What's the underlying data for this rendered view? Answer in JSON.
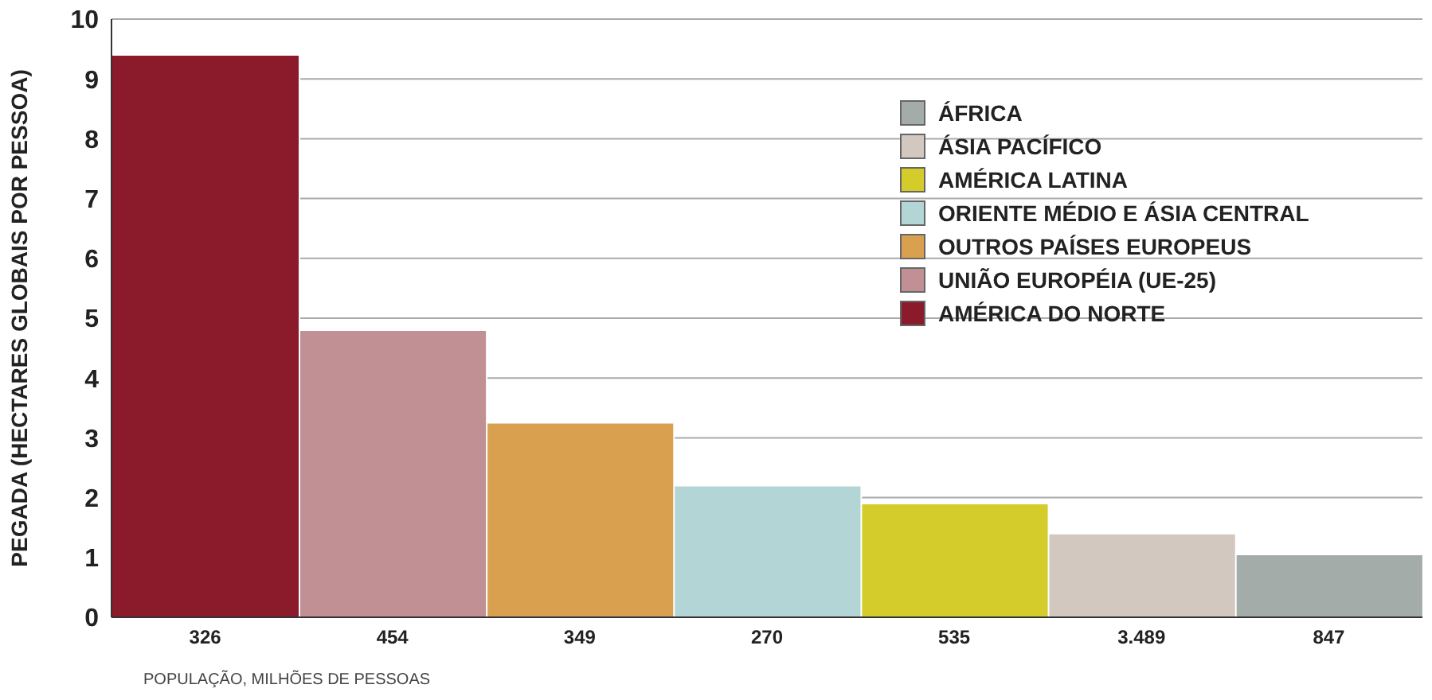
{
  "chart_data": {
    "type": "bar",
    "stacked": true,
    "xlabel": "POPULAÇÃO, MILHÕES DE PESSOAS",
    "ylabel": "PEGADA (HECTARES GLOBAIS POR PESSOA)",
    "categories": [
      "326",
      "454",
      "349",
      "270",
      "535",
      "3.489",
      "847"
    ],
    "ylim": [
      0,
      10
    ],
    "yticks": [
      0,
      1,
      2,
      3,
      4,
      5,
      6,
      7,
      8,
      9,
      10
    ],
    "grid": "y",
    "legend": "top right",
    "series": [
      {
        "name": "ÁFRICA",
        "color": "#a3aca8",
        "values": [
          null,
          null,
          null,
          null,
          null,
          null,
          1.05
        ]
      },
      {
        "name": "ÁSIA PACÍFICO",
        "color": "#d3c8c0",
        "values": [
          null,
          null,
          null,
          null,
          null,
          1.4,
          null
        ]
      },
      {
        "name": "AMÉRICA LATINA",
        "color": "#d4cc2a",
        "values": [
          null,
          null,
          null,
          null,
          1.9,
          null,
          null
        ]
      },
      {
        "name": "ORIENTE MÉDIO E ÁSIA CENTRAL",
        "color": "#b3d5d6",
        "values": [
          null,
          null,
          null,
          2.2,
          null,
          null,
          null
        ]
      },
      {
        "name": "OUTROS PAÍSES EUROPEUS",
        "color": "#d9a050",
        "values": [
          null,
          null,
          3.25,
          null,
          null,
          null,
          null
        ]
      },
      {
        "name": "UNIÃO EUROPÉIA (UE-25)",
        "color": "#c09095",
        "values": [
          null,
          4.8,
          null,
          null,
          null,
          null,
          null
        ]
      },
      {
        "name": "AMÉRICA DO NORTE",
        "color": "#8b1a2b",
        "values": [
          9.4,
          null,
          null,
          null,
          null,
          null,
          null
        ]
      }
    ]
  }
}
